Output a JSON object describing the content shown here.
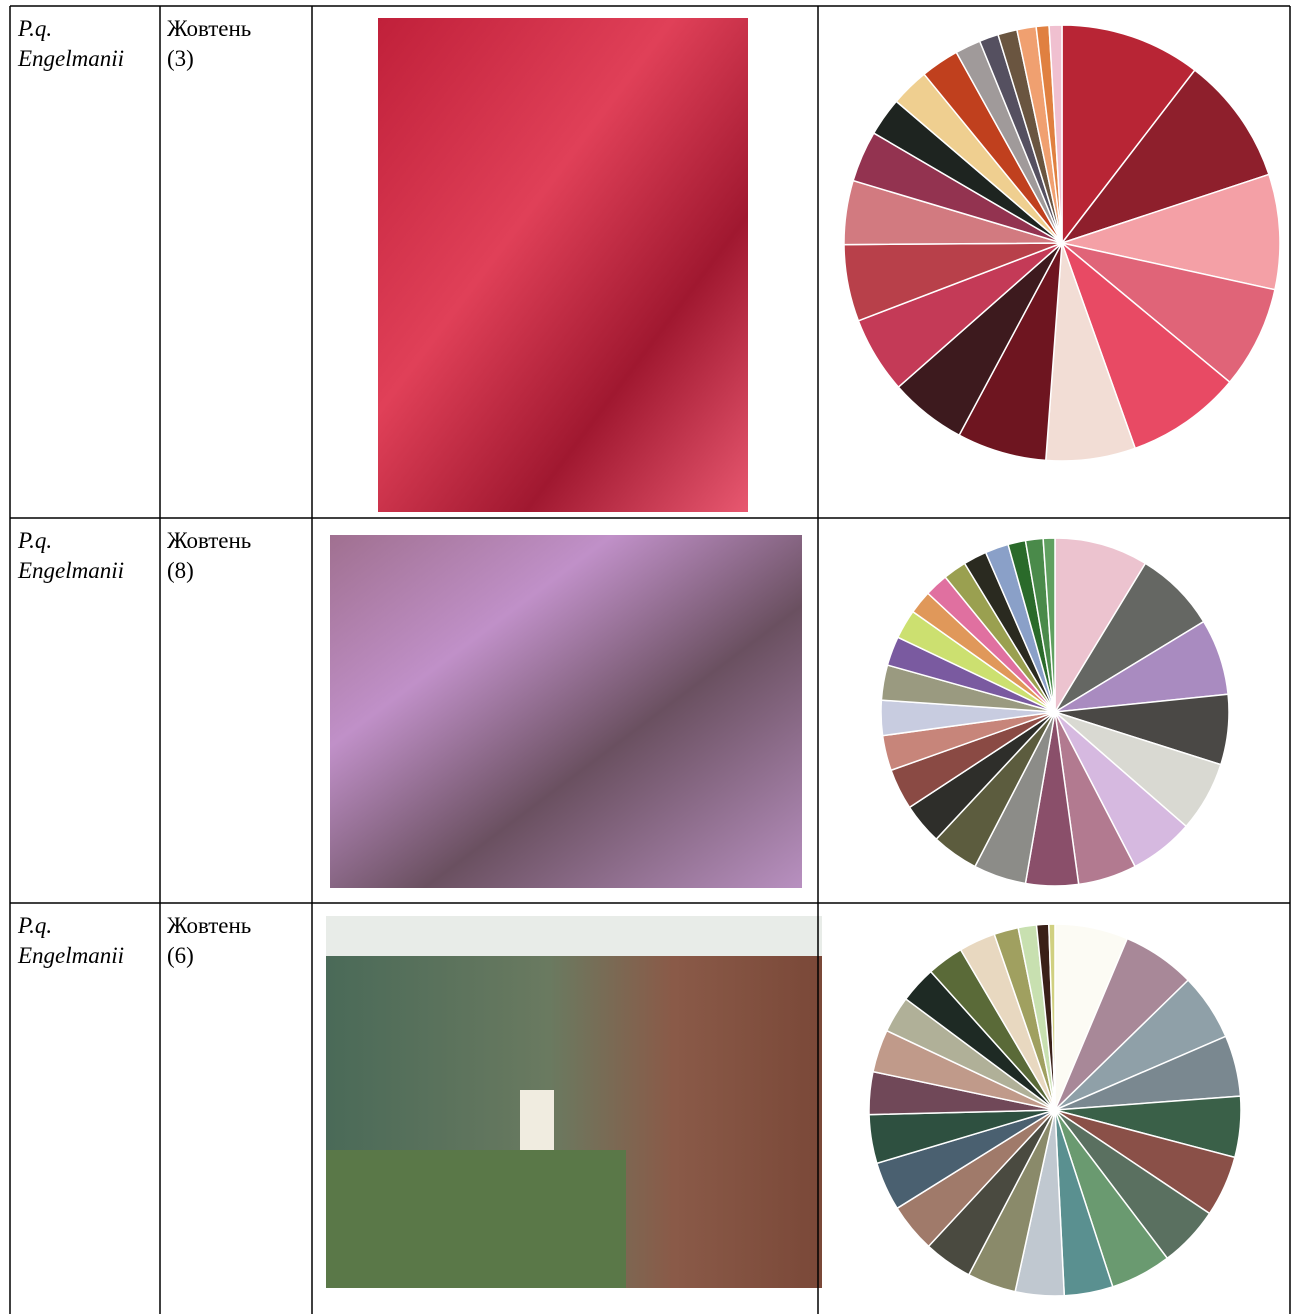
{
  "rows": [
    {
      "name": [
        "P.q.",
        "Engelmanii"
      ],
      "month": [
        "Жовтень",
        "(3)"
      ],
      "pie": {
        "type": "pie",
        "values": [
          11,
          10,
          9,
          8,
          9,
          7,
          7,
          6,
          6,
          6,
          5,
          4,
          3,
          3,
          3,
          2,
          1.5,
          1.5,
          1.5,
          1,
          1
        ],
        "colors": [
          "#b82535",
          "#8e1f2c",
          "#f4a0a6",
          "#e06478",
          "#e84a64",
          "#f2ddd5",
          "#6e1520",
          "#3d1a1e",
          "#c43a57",
          "#b8404a",
          "#d27a80",
          "#933350",
          "#1e2420",
          "#efcf90",
          "#c0401e",
          "#a09a9a",
          "#555060",
          "#6a5540",
          "#f0a070",
          "#e08040",
          "#f0c0d0"
        ]
      }
    },
    {
      "name": [
        "P.q.",
        "Engelmanii"
      ],
      "month": [
        "Жовтень",
        "(8)"
      ],
      "pie": {
        "type": "pie",
        "values": [
          8,
          7,
          6.5,
          6,
          6,
          5.5,
          5,
          4.5,
          4.5,
          4,
          3.5,
          3.5,
          3,
          3,
          3,
          2.5,
          2.5,
          2,
          2,
          2,
          2,
          2,
          1.5,
          1.5,
          1
        ],
        "colors": [
          "#ecc3cf",
          "#656763",
          "#a98bc0",
          "#4a4845",
          "#d9d9d2",
          "#d6b9e0",
          "#b27a90",
          "#8a4f6a",
          "#8c8c88",
          "#5c5c3e",
          "#2e2e2a",
          "#8a4a44",
          "#c7857a",
          "#c8cce0",
          "#9a9a80",
          "#7a5aa0",
          "#cce070",
          "#e0985a",
          "#e070a0",
          "#9aa050",
          "#2a2a20",
          "#8aa0c8",
          "#2a6a2a",
          "#4a8a4a",
          "#60a060"
        ]
      }
    },
    {
      "name": [
        "P.q.",
        "Engelmanii"
      ],
      "month": [
        "Жовтень",
        "(6)"
      ],
      "pie": {
        "type": "pie",
        "values": [
          6,
          6,
          5.5,
          5,
          5,
          5,
          5,
          5,
          4,
          4,
          4,
          4,
          4,
          4,
          4,
          3.5,
          3.5,
          3,
          3,
          3,
          3,
          2,
          1.5,
          1,
          0.5
        ],
        "colors": [
          "#fcfbf4",
          "#a88898",
          "#8fa0a8",
          "#7a8890",
          "#3a6048",
          "#8a5048",
          "#5a7060",
          "#6a9a70",
          "#5a9090",
          "#c0c8d0",
          "#8a8a6a",
          "#4a4a40",
          "#a07a6a",
          "#4a6070",
          "#2e5040",
          "#704858",
          "#c09a8a",
          "#b0b098",
          "#1e2a24",
          "#5a6a38",
          "#e8d8c0",
          "#a0a060",
          "#c8e0b0",
          "#3a2018",
          "#d0d080"
        ]
      }
    }
  ]
}
